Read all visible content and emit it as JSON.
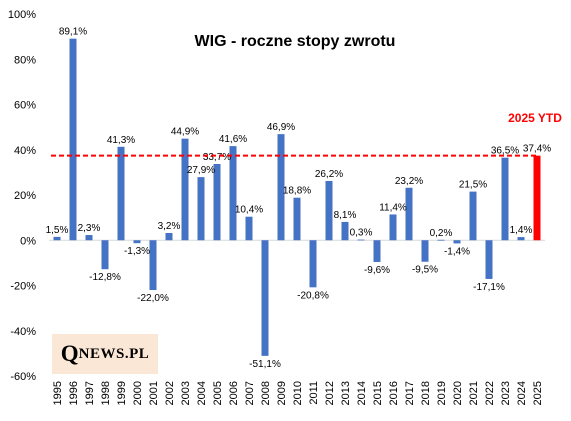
{
  "chart_data": {
    "type": "bar",
    "title": "WIG - roczne stopy zwrotu",
    "categories": [
      "1995",
      "1996",
      "1997",
      "1998",
      "1999",
      "2000",
      "2001",
      "2002",
      "2003",
      "2004",
      "2005",
      "2006",
      "2007",
      "2008",
      "2009",
      "2010",
      "2011",
      "2012",
      "2013",
      "2014",
      "2015",
      "2016",
      "2017",
      "2018",
      "2019",
      "2020",
      "2021",
      "2022",
      "2023",
      "2024",
      "2025"
    ],
    "values": [
      1.5,
      89.1,
      2.3,
      -12.8,
      41.3,
      -1.3,
      -22.0,
      3.2,
      44.9,
      27.9,
      33.7,
      41.6,
      10.4,
      -51.1,
      46.9,
      18.8,
      -20.8,
      26.2,
      8.1,
      0.3,
      -9.6,
      11.4,
      23.2,
      -9.5,
      0.2,
      -1.4,
      21.5,
      -17.1,
      36.5,
      1.4,
      37.4
    ],
    "data_labels": [
      "1,5%",
      "89,1%",
      "2,3%",
      "-12,8%",
      "41,3%",
      "-1,3%",
      "-22,0%",
      "3,2%",
      "44,9%",
      "27,9%",
      "33,7%",
      "41,6%",
      "10,4%",
      "-51,1%",
      "46,9%",
      "18,8%",
      "-20,8%",
      "26,2%",
      "8,1%",
      "0,3%",
      "-9,6%",
      "11,4%",
      "23,2%",
      "-9,5%",
      "0,2%",
      "-1,4%",
      "21,5%",
      "-17,1%",
      "36,5%",
      "1,4%",
      "37,4%"
    ],
    "ylim": [
      -60,
      100
    ],
    "yticks": [
      -60,
      -40,
      -20,
      0,
      20,
      40,
      60,
      80,
      100
    ],
    "ytick_labels": [
      "-60%",
      "-40%",
      "-20%",
      "0%",
      "20%",
      "40%",
      "60%",
      "80%",
      "100%"
    ],
    "bar_color": "#4472c4",
    "highlight_index": 30,
    "highlight_color": "#ff0000",
    "reference_line": {
      "value": 37.4,
      "color": "#ff0000",
      "style": "dashed"
    },
    "annotation": "2025 YTD",
    "grid": false
  },
  "logo": {
    "big_letter": "Q",
    "text": "NEWS.PL"
  }
}
